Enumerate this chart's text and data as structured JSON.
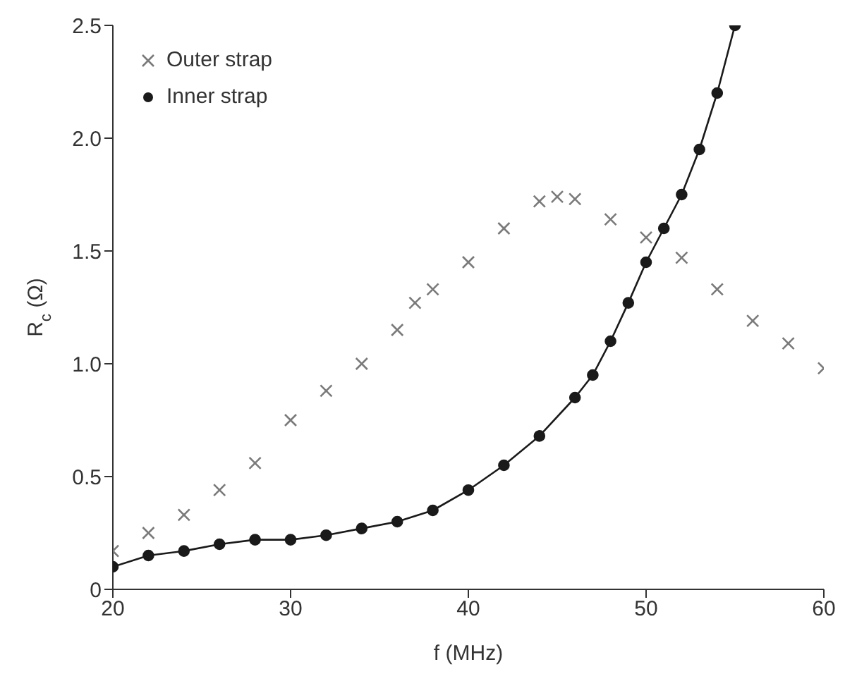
{
  "chart_data": {
    "type": "line",
    "xlabel": "f (MHz)",
    "ylabel": "R$_{c}$ (Ω)",
    "xlim": [
      20,
      60
    ],
    "xticks": [
      20,
      30,
      40,
      50,
      60
    ],
    "ylim": [
      0,
      2.5
    ],
    "yticks": [
      0,
      0.5,
      {
        "value": 1,
        "label": "1.0"
      },
      1.5,
      {
        "value": 2,
        "label": "2.0"
      },
      2.5
    ],
    "grid": false,
    "legend": "top left",
    "series": [
      {
        "name": "Outer strap",
        "type": "scatter",
        "marker": "cross",
        "color": "#7a7a7a",
        "x": [
          20,
          22,
          24,
          26,
          28,
          30,
          32,
          34,
          36,
          37,
          38,
          40,
          42,
          44,
          45,
          46,
          48,
          50,
          52,
          54,
          56,
          58,
          60
        ],
        "values": [
          0.17,
          0.25,
          0.33,
          0.44,
          0.56,
          0.75,
          0.88,
          1.0,
          1.15,
          1.27,
          1.33,
          1.45,
          1.6,
          1.72,
          1.74,
          1.73,
          1.64,
          1.56,
          1.47,
          1.33,
          1.19,
          1.09,
          0.98
        ]
      },
      {
        "name": "Inner strap",
        "type": "line",
        "marker": "circle",
        "color": "#1a1a1a",
        "x": [
          20,
          22,
          24,
          26,
          28,
          30,
          32,
          34,
          36,
          38,
          40,
          42,
          44,
          46,
          47,
          48,
          49,
          50,
          51,
          52,
          53,
          54,
          55
        ],
        "values": [
          0.1,
          0.15,
          0.17,
          0.2,
          0.22,
          0.22,
          0.24,
          0.27,
          0.3,
          0.35,
          0.44,
          0.55,
          0.68,
          0.85,
          0.95,
          1.1,
          1.27,
          1.45,
          1.6,
          1.75,
          1.95,
          2.2,
          2.5
        ]
      }
    ]
  }
}
